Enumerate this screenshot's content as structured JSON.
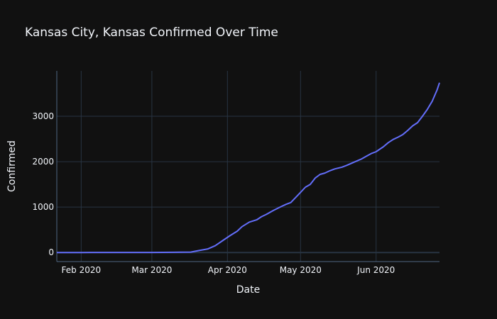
{
  "chart_data": {
    "type": "line",
    "title": "Kansas City, Kansas Confirmed Over Time",
    "xlabel": "Date",
    "ylabel": "Confirmed",
    "xlim": [
      "2020-01-22",
      "2020-06-27"
    ],
    "ylim": [
      -200,
      4000
    ],
    "x_ticks": [
      {
        "date": "2020-02-01",
        "label": "Feb 2020"
      },
      {
        "date": "2020-03-01",
        "label": "Mar 2020"
      },
      {
        "date": "2020-04-01",
        "label": "Apr 2020"
      },
      {
        "date": "2020-05-01",
        "label": "May 2020"
      },
      {
        "date": "2020-06-01",
        "label": "Jun 2020"
      }
    ],
    "y_ticks": [
      0,
      1000,
      2000,
      3000
    ],
    "grid": true,
    "legend": "none",
    "line_color": "#636efa",
    "background": "#111111",
    "series": [
      {
        "x": [
          "2020-01-22",
          "2020-02-01",
          "2020-03-01",
          "2020-03-10",
          "2020-03-17",
          "2020-03-20",
          "2020-03-24",
          "2020-03-27",
          "2020-03-30",
          "2020-04-02",
          "2020-04-05",
          "2020-04-07",
          "2020-04-10",
          "2020-04-13",
          "2020-04-15",
          "2020-04-17",
          "2020-04-20",
          "2020-04-23",
          "2020-04-25",
          "2020-04-27",
          "2020-04-30",
          "2020-05-03",
          "2020-05-05",
          "2020-05-07",
          "2020-05-09",
          "2020-05-11",
          "2020-05-13",
          "2020-05-15",
          "2020-05-18",
          "2020-05-20",
          "2020-05-23",
          "2020-05-26",
          "2020-05-28",
          "2020-05-30",
          "2020-06-01",
          "2020-06-04",
          "2020-06-06",
          "2020-06-08",
          "2020-06-10",
          "2020-06-12",
          "2020-06-14",
          "2020-06-16",
          "2020-06-18",
          "2020-06-20",
          "2020-06-22",
          "2020-06-24",
          "2020-06-26",
          "2020-06-27"
        ],
        "y": [
          0,
          0,
          2,
          5,
          10,
          40,
          80,
          150,
          260,
          370,
          470,
          570,
          670,
          720,
          790,
          840,
          930,
          1010,
          1060,
          1100,
          1270,
          1440,
          1500,
          1640,
          1720,
          1750,
          1800,
          1840,
          1880,
          1920,
          1990,
          2060,
          2120,
          2180,
          2220,
          2330,
          2420,
          2490,
          2540,
          2600,
          2690,
          2790,
          2860,
          3000,
          3150,
          3330,
          3580,
          3740
        ]
      }
    ]
  }
}
